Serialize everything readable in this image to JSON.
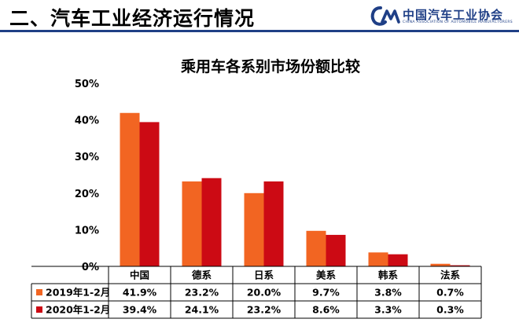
{
  "header": {
    "title": "二、汽车工业经济运行情况",
    "logo_name": "中国汽车工业协会",
    "logo_sub": "CHINA ASSOCIATION OF AUTOMOBILE MANUFACTURERS",
    "accent_color": "#1f3f86"
  },
  "chart_data": {
    "type": "bar",
    "title": "乘用车各系别市场份额比较",
    "categories": [
      "中国",
      "德系",
      "日系",
      "美系",
      "韩系",
      "法系"
    ],
    "series": [
      {
        "name": "2019年1-2月",
        "values": [
          41.9,
          23.2,
          20.0,
          9.7,
          3.8,
          0.7
        ],
        "labels": [
          "41.9%",
          "23.2%",
          "20.0%",
          "9.7%",
          "3.8%",
          "0.7%"
        ],
        "color": "#f26522"
      },
      {
        "name": "2020年1-2月",
        "values": [
          39.4,
          24.1,
          23.2,
          8.6,
          3.3,
          0.3
        ],
        "labels": [
          "39.4%",
          "24.1%",
          "23.2%",
          "8.6%",
          "3.3%",
          "0.3%"
        ],
        "color": "#cc0a14"
      }
    ],
    "ylim": [
      0,
      50
    ],
    "yticks": [
      "0%",
      "10%",
      "20%",
      "30%",
      "40%",
      "50%"
    ],
    "grid": false,
    "legend": "data-table-below"
  }
}
